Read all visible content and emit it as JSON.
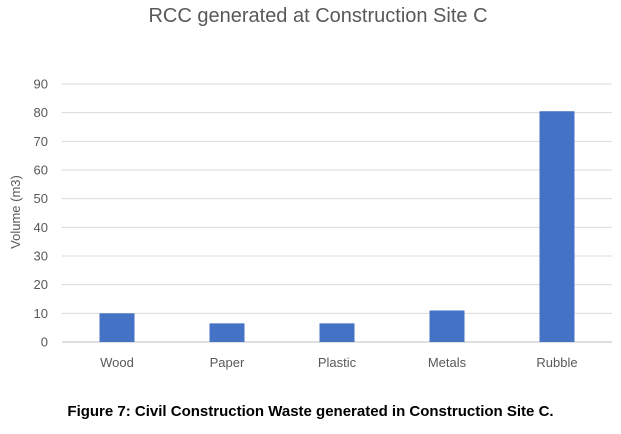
{
  "caption": "Figure 7: Civil Construction Waste generated in Construction Site C.",
  "colors": {
    "bar": "#4472c4",
    "text": "#595959",
    "grid": "#d9d9d9"
  },
  "chart_data": {
    "type": "bar",
    "title": "RCC generated at Construction Site C",
    "xlabel": "",
    "ylabel": "Volume (m3)",
    "categories": [
      "Wood",
      "Paper",
      "Plastic",
      "Metals",
      "Rubble"
    ],
    "values": [
      10,
      6.5,
      6.5,
      11,
      80.5
    ],
    "ylim": [
      0,
      90
    ],
    "yticks": [
      0,
      10,
      20,
      30,
      40,
      50,
      60,
      70,
      80,
      90
    ],
    "grid": true,
    "legend": "none"
  }
}
